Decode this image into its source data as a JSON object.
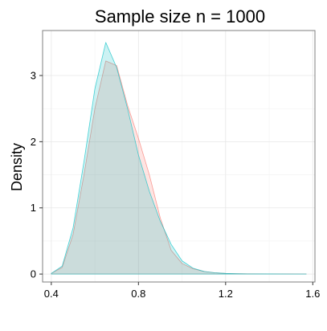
{
  "chart_data": {
    "type": "area",
    "title": "Sample size n = 1000",
    "xlabel": "",
    "ylabel": "Density",
    "xlim": [
      0.36,
      1.61
    ],
    "ylim": [
      -0.12,
      3.68
    ],
    "xticks": [
      0.4,
      0.8,
      1.2,
      1.6
    ],
    "xtick_labels": [
      "0.4",
      "0.8",
      "1.2",
      "1.6"
    ],
    "yticks": [
      0,
      1,
      2,
      3
    ],
    "ytick_labels": [
      "0",
      "1",
      "2",
      "3"
    ],
    "grid": true,
    "legend": "none",
    "series": [
      {
        "color": "#f8766d",
        "x": [
          0.4,
          0.45,
          0.5,
          0.55,
          0.6,
          0.65,
          0.7,
          0.75,
          0.8,
          0.85,
          0.9,
          0.95,
          1.0,
          1.05,
          1.1,
          1.15,
          1.2,
          1.25,
          1.3,
          1.4,
          1.5,
          1.57
        ],
        "y": [
          0.01,
          0.1,
          0.6,
          1.5,
          2.5,
          3.22,
          3.15,
          2.55,
          2.05,
          1.5,
          0.85,
          0.36,
          0.16,
          0.08,
          0.04,
          0.02,
          0.01,
          0.006,
          0.004,
          0.003,
          0.002,
          0.001
        ]
      },
      {
        "color": "#00bfc4",
        "x": [
          0.4,
          0.45,
          0.5,
          0.55,
          0.6,
          0.65,
          0.7,
          0.75,
          0.8,
          0.85,
          0.9,
          0.95,
          1.0,
          1.05,
          1.1,
          1.15,
          1.2,
          1.25,
          1.3,
          1.4,
          1.5,
          1.57
        ],
        "y": [
          0.01,
          0.12,
          0.7,
          1.7,
          2.8,
          3.5,
          3.12,
          2.5,
          1.8,
          1.25,
          0.8,
          0.45,
          0.2,
          0.09,
          0.04,
          0.02,
          0.01,
          0.005,
          0.003,
          0.002,
          0.001,
          0.001
        ]
      }
    ]
  }
}
